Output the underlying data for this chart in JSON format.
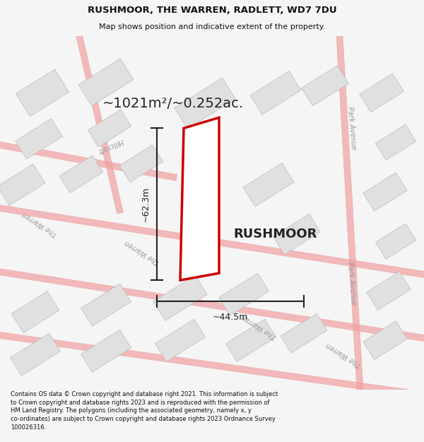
{
  "title_line1": "RUSHMOOR, THE WARREN, RADLETT, WD7 7DU",
  "title_line2": "Map shows position and indicative extent of the property.",
  "area_label": "~1021m²/~0.252ac.",
  "property_label": "RUSHMOOR",
  "dim_vertical": "~62.3m",
  "dim_horizontal": "~44.5m",
  "footer_text": "Contains OS data © Crown copyright and database right 2021. This information is subject to Crown copyright and database rights 2023 and is reproduced with the permission of HM Land Registry. The polygons (including the associated geometry, namely x, y co-ordinates) are subject to Crown copyright and database rights 2023 Ordnance Survey 100026316.",
  "bg_color": "#f5f5f5",
  "map_bg": "#ffffff",
  "building_fill": "#e0e0e0",
  "building_edge": "#bbbbbb",
  "road_color": "#f0a0a0",
  "road_outline": "#cccccc",
  "prop_edge": "#cc0000",
  "prop_fill": "#ffffff",
  "dim_color": "#222222",
  "text_color": "#222222",
  "street_color": "#999999",
  "title_color": "#111111",
  "footer_color": "#111111"
}
